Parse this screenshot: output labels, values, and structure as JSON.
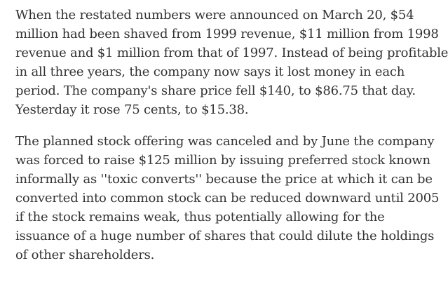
{
  "article": {
    "paragraphs": [
      {
        "lines": [
          "When the restated numbers were announced on March 20, $54",
          "million had been shaved from 1999 revenue, $11 million from 1998",
          "revenue and $1 million from that of 1997. Instead of being profitable",
          "in all three years, the company now says it lost money in each",
          "period. The company's share price fell $140, to $86.75 that day.",
          "Yesterday it rose 75 cents, to $15.38."
        ]
      },
      {
        "lines": [
          "The planned stock offering was canceled and by June the company",
          "was forced to raise $125 million by issuing preferred stock known",
          "informally as ''toxic converts'' because the price at which it can be",
          "converted into common stock can be reduced downward until 2005",
          "if the stock remains weak, thus potentially allowing for the",
          "issuance of a huge number of shares that could dilute the holdings",
          "of other shareholders."
        ]
      }
    ]
  }
}
